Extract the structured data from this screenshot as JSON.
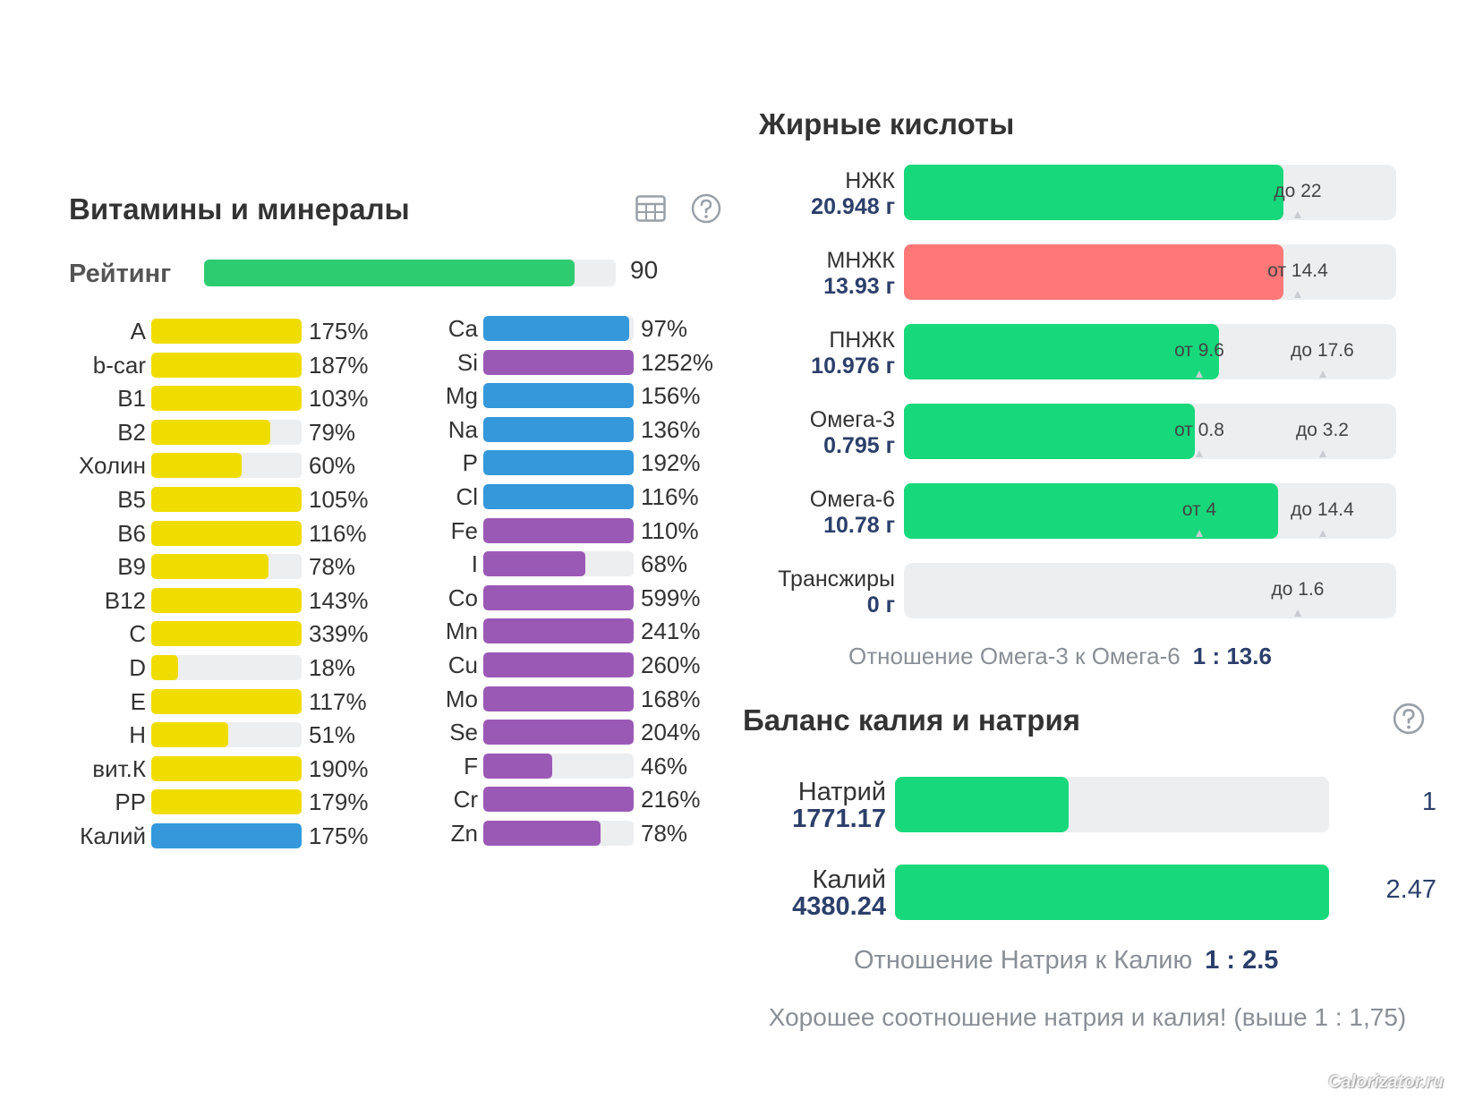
{
  "colors": {
    "yellow": "#f0dd00",
    "blue": "#3498db",
    "purple": "#9b59b6",
    "green": "#17d87b",
    "rating_green": "#2ecc71",
    "red": "#ff7878",
    "track": "#eceef0",
    "value_text": "#2c3f6b"
  },
  "vitamins": {
    "title": "Витамины и минералы",
    "table_icon": "table-icon",
    "help_icon": "question-circle-icon",
    "rating": {
      "label": "Рейтинг",
      "value": 90,
      "display": "90"
    },
    "left": [
      {
        "name": "A",
        "pct": 175,
        "label": "175%",
        "color": "yellow"
      },
      {
        "name": "b-car",
        "pct": 187,
        "label": "187%",
        "color": "yellow"
      },
      {
        "name": "B1",
        "pct": 103,
        "label": "103%",
        "color": "yellow"
      },
      {
        "name": "B2",
        "pct": 79,
        "label": "79%",
        "color": "yellow"
      },
      {
        "name": "Холин",
        "pct": 60,
        "label": "60%",
        "color": "yellow"
      },
      {
        "name": "B5",
        "pct": 105,
        "label": "105%",
        "color": "yellow"
      },
      {
        "name": "B6",
        "pct": 116,
        "label": "116%",
        "color": "yellow"
      },
      {
        "name": "B9",
        "pct": 78,
        "label": "78%",
        "color": "yellow"
      },
      {
        "name": "B12",
        "pct": 143,
        "label": "143%",
        "color": "yellow"
      },
      {
        "name": "C",
        "pct": 339,
        "label": "339%",
        "color": "yellow"
      },
      {
        "name": "D",
        "pct": 18,
        "label": "18%",
        "color": "yellow"
      },
      {
        "name": "E",
        "pct": 117,
        "label": "117%",
        "color": "yellow"
      },
      {
        "name": "H",
        "pct": 51,
        "label": "51%",
        "color": "yellow"
      },
      {
        "name": "вит.К",
        "pct": 190,
        "label": "190%",
        "color": "yellow"
      },
      {
        "name": "PP",
        "pct": 179,
        "label": "179%",
        "color": "yellow"
      },
      {
        "name": "Калий",
        "pct": 175,
        "label": "175%",
        "color": "blue"
      }
    ],
    "right": [
      {
        "name": "Ca",
        "pct": 97,
        "label": "97%",
        "color": "blue"
      },
      {
        "name": "Si",
        "pct": 1252,
        "label": "1252%",
        "color": "purple"
      },
      {
        "name": "Mg",
        "pct": 156,
        "label": "156%",
        "color": "blue"
      },
      {
        "name": "Na",
        "pct": 136,
        "label": "136%",
        "color": "blue"
      },
      {
        "name": "P",
        "pct": 192,
        "label": "192%",
        "color": "blue"
      },
      {
        "name": "Cl",
        "pct": 116,
        "label": "116%",
        "color": "blue"
      },
      {
        "name": "Fe",
        "pct": 110,
        "label": "110%",
        "color": "purple"
      },
      {
        "name": "I",
        "pct": 68,
        "label": "68%",
        "color": "purple"
      },
      {
        "name": "Co",
        "pct": 599,
        "label": "599%",
        "color": "purple"
      },
      {
        "name": "Mn",
        "pct": 241,
        "label": "241%",
        "color": "purple"
      },
      {
        "name": "Cu",
        "pct": 260,
        "label": "260%",
        "color": "purple"
      },
      {
        "name": "Mo",
        "pct": 168,
        "label": "168%",
        "color": "purple"
      },
      {
        "name": "Se",
        "pct": 204,
        "label": "204%",
        "color": "purple"
      },
      {
        "name": "F",
        "pct": 46,
        "label": "46%",
        "color": "purple"
      },
      {
        "name": "Cr",
        "pct": 216,
        "label": "216%",
        "color": "purple"
      },
      {
        "name": "Zn",
        "pct": 78,
        "label": "78%",
        "color": "purple"
      }
    ]
  },
  "fatty_acids": {
    "title": "Жирные кислоты",
    "rows": [
      {
        "name": "НЖК",
        "value": "20.948 г",
        "fill": 0.77,
        "color": "green",
        "labels": [
          {
            "text": "до 22",
            "pos": 0.8
          }
        ],
        "ticks": [
          0.8
        ]
      },
      {
        "name": "МНЖК",
        "value": "13.93 г",
        "fill": 0.77,
        "color": "red",
        "labels": [
          {
            "text": "от 14.4",
            "pos": 0.8
          }
        ],
        "ticks": [
          0.8
        ]
      },
      {
        "name": "ПНЖК",
        "value": "10.976 г",
        "fill": 0.64,
        "color": "green",
        "labels": [
          {
            "text": "от 9.6",
            "pos": 0.6
          },
          {
            "text": "до 17.6",
            "pos": 0.85
          }
        ],
        "ticks": [
          0.6,
          0.85
        ]
      },
      {
        "name": "Омега-3",
        "value": "0.795 г",
        "fill": 0.59,
        "color": "green",
        "labels": [
          {
            "text": "от 0.8",
            "pos": 0.6
          },
          {
            "text": "до 3.2",
            "pos": 0.85
          }
        ],
        "ticks": [
          0.6,
          0.85
        ]
      },
      {
        "name": "Омега-6",
        "value": "10.78 г",
        "fill": 0.76,
        "color": "green",
        "labels": [
          {
            "text": "от 4",
            "pos": 0.6
          },
          {
            "text": "до 14.4",
            "pos": 0.85
          }
        ],
        "ticks": [
          0.6,
          0.85
        ]
      },
      {
        "name": "Трансжиры",
        "value": "0 г",
        "fill": 0,
        "color": "green",
        "labels": [
          {
            "text": "до 1.6",
            "pos": 0.8
          }
        ],
        "ticks": [
          0.8
        ]
      }
    ],
    "ratio_label": "Отношение Омега-3 к Омега-6",
    "ratio_value": "1 : 13.6"
  },
  "potassium_sodium": {
    "title": "Баланс калия и натрия",
    "help_icon": "question-circle-icon",
    "rows": [
      {
        "name": "Натрий",
        "value": "1771.17",
        "fill": 0.4,
        "ratio": "1"
      },
      {
        "name": "Калий",
        "value": "4380.24",
        "fill": 1.0,
        "ratio": "2.47"
      }
    ],
    "ratio_label": "Отношение Натрия к Калию",
    "ratio_value": "1 : 2.5",
    "note": "Хорошее соотношение натрия и калия! (выше 1 : 1,75)"
  },
  "watermark": "Calorizator.ru"
}
